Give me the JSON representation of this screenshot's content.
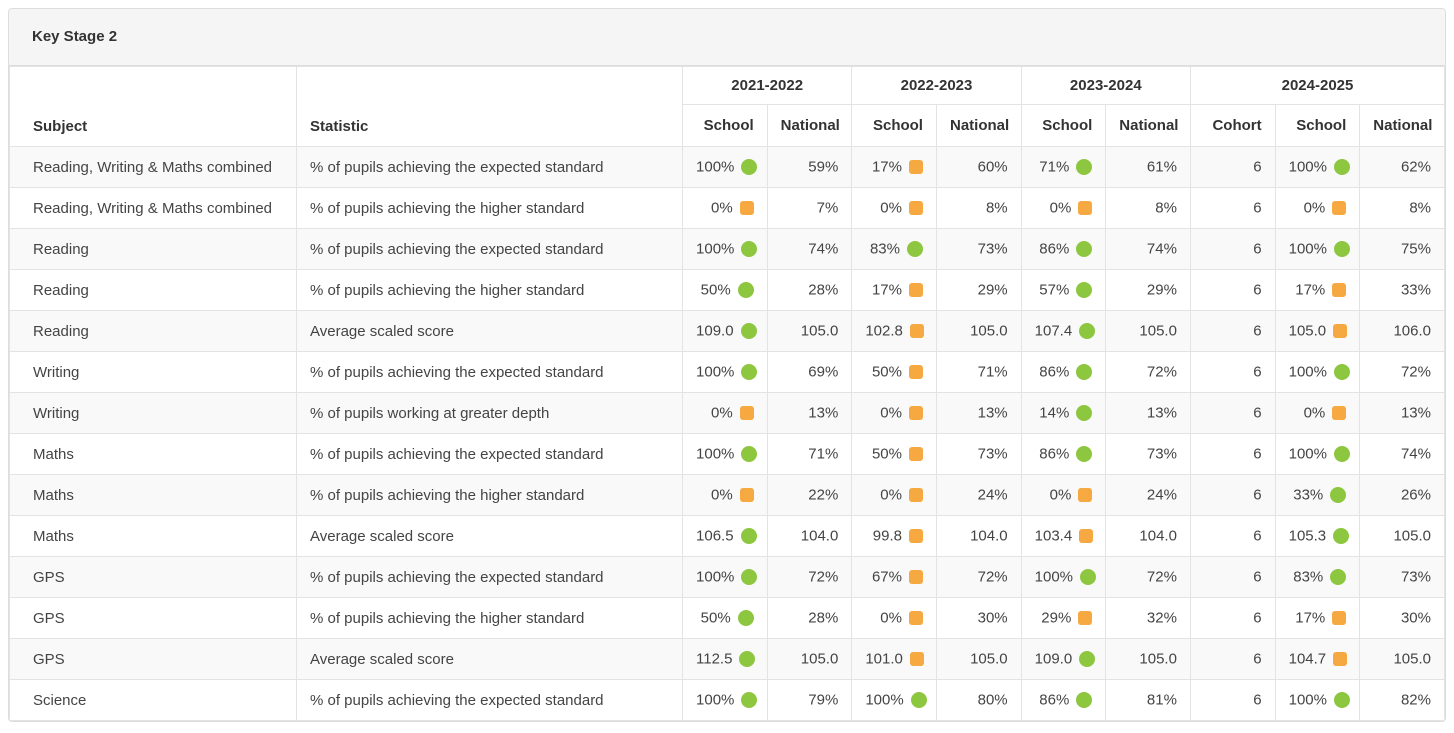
{
  "panel": {
    "title": "Key Stage 2"
  },
  "table": {
    "subject_header": "Subject",
    "statistic_header": "Statistic",
    "year_groups": [
      {
        "label": "2021-2022",
        "columns": [
          "School",
          "National"
        ]
      },
      {
        "label": "2022-2023",
        "columns": [
          "School",
          "National"
        ]
      },
      {
        "label": "2023-2024",
        "columns": [
          "School",
          "National"
        ]
      },
      {
        "label": "2024-2025",
        "columns": [
          "Cohort",
          "School",
          "National"
        ]
      }
    ],
    "indicator_colors": {
      "green": "#8DC63F",
      "orange": "#F7A941"
    },
    "rows": [
      {
        "subject": "Reading, Writing & Maths combined",
        "statistic": "% of pupils achieving the expected standard",
        "cells": [
          {
            "value": "100%",
            "indicator": "green"
          },
          {
            "value": "59%"
          },
          {
            "value": "17%",
            "indicator": "orange"
          },
          {
            "value": "60%"
          },
          {
            "value": "71%",
            "indicator": "green"
          },
          {
            "value": "61%"
          },
          {
            "value": "6"
          },
          {
            "value": "100%",
            "indicator": "green"
          },
          {
            "value": "62%"
          }
        ]
      },
      {
        "subject": "Reading, Writing & Maths combined",
        "statistic": "% of pupils achieving the higher standard",
        "cells": [
          {
            "value": "0%",
            "indicator": "orange"
          },
          {
            "value": "7%"
          },
          {
            "value": "0%",
            "indicator": "orange"
          },
          {
            "value": "8%"
          },
          {
            "value": "0%",
            "indicator": "orange"
          },
          {
            "value": "8%"
          },
          {
            "value": "6"
          },
          {
            "value": "0%",
            "indicator": "orange"
          },
          {
            "value": "8%"
          }
        ]
      },
      {
        "subject": "Reading",
        "statistic": "% of pupils achieving the expected standard",
        "cells": [
          {
            "value": "100%",
            "indicator": "green"
          },
          {
            "value": "74%"
          },
          {
            "value": "83%",
            "indicator": "green"
          },
          {
            "value": "73%"
          },
          {
            "value": "86%",
            "indicator": "green"
          },
          {
            "value": "74%"
          },
          {
            "value": "6"
          },
          {
            "value": "100%",
            "indicator": "green"
          },
          {
            "value": "75%"
          }
        ]
      },
      {
        "subject": "Reading",
        "statistic": "% of pupils achieving the higher standard",
        "cells": [
          {
            "value": "50%",
            "indicator": "green"
          },
          {
            "value": "28%"
          },
          {
            "value": "17%",
            "indicator": "orange"
          },
          {
            "value": "29%"
          },
          {
            "value": "57%",
            "indicator": "green"
          },
          {
            "value": "29%"
          },
          {
            "value": "6"
          },
          {
            "value": "17%",
            "indicator": "orange"
          },
          {
            "value": "33%"
          }
        ]
      },
      {
        "subject": "Reading",
        "statistic": "Average scaled score",
        "cells": [
          {
            "value": "109.0",
            "indicator": "green"
          },
          {
            "value": "105.0"
          },
          {
            "value": "102.8",
            "indicator": "orange"
          },
          {
            "value": "105.0"
          },
          {
            "value": "107.4",
            "indicator": "green"
          },
          {
            "value": "105.0"
          },
          {
            "value": "6"
          },
          {
            "value": "105.0",
            "indicator": "orange"
          },
          {
            "value": "106.0"
          }
        ]
      },
      {
        "subject": "Writing",
        "statistic": "% of pupils achieving the expected standard",
        "cells": [
          {
            "value": "100%",
            "indicator": "green"
          },
          {
            "value": "69%"
          },
          {
            "value": "50%",
            "indicator": "orange"
          },
          {
            "value": "71%"
          },
          {
            "value": "86%",
            "indicator": "green"
          },
          {
            "value": "72%"
          },
          {
            "value": "6"
          },
          {
            "value": "100%",
            "indicator": "green"
          },
          {
            "value": "72%"
          }
        ]
      },
      {
        "subject": "Writing",
        "statistic": "% of pupils working at greater depth",
        "cells": [
          {
            "value": "0%",
            "indicator": "orange"
          },
          {
            "value": "13%"
          },
          {
            "value": "0%",
            "indicator": "orange"
          },
          {
            "value": "13%"
          },
          {
            "value": "14%",
            "indicator": "green"
          },
          {
            "value": "13%"
          },
          {
            "value": "6"
          },
          {
            "value": "0%",
            "indicator": "orange"
          },
          {
            "value": "13%"
          }
        ]
      },
      {
        "subject": "Maths",
        "statistic": "% of pupils achieving the expected standard",
        "cells": [
          {
            "value": "100%",
            "indicator": "green"
          },
          {
            "value": "71%"
          },
          {
            "value": "50%",
            "indicator": "orange"
          },
          {
            "value": "73%"
          },
          {
            "value": "86%",
            "indicator": "green"
          },
          {
            "value": "73%"
          },
          {
            "value": "6"
          },
          {
            "value": "100%",
            "indicator": "green"
          },
          {
            "value": "74%"
          }
        ]
      },
      {
        "subject": "Maths",
        "statistic": "% of pupils achieving the higher standard",
        "cells": [
          {
            "value": "0%",
            "indicator": "orange"
          },
          {
            "value": "22%"
          },
          {
            "value": "0%",
            "indicator": "orange"
          },
          {
            "value": "24%"
          },
          {
            "value": "0%",
            "indicator": "orange"
          },
          {
            "value": "24%"
          },
          {
            "value": "6"
          },
          {
            "value": "33%",
            "indicator": "green"
          },
          {
            "value": "26%"
          }
        ]
      },
      {
        "subject": "Maths",
        "statistic": "Average scaled score",
        "cells": [
          {
            "value": "106.5",
            "indicator": "green"
          },
          {
            "value": "104.0"
          },
          {
            "value": "99.8",
            "indicator": "orange"
          },
          {
            "value": "104.0"
          },
          {
            "value": "103.4",
            "indicator": "orange"
          },
          {
            "value": "104.0"
          },
          {
            "value": "6"
          },
          {
            "value": "105.3",
            "indicator": "green"
          },
          {
            "value": "105.0"
          }
        ]
      },
      {
        "subject": "GPS",
        "statistic": "% of pupils achieving the expected standard",
        "cells": [
          {
            "value": "100%",
            "indicator": "green"
          },
          {
            "value": "72%"
          },
          {
            "value": "67%",
            "indicator": "orange"
          },
          {
            "value": "72%"
          },
          {
            "value": "100%",
            "indicator": "green"
          },
          {
            "value": "72%"
          },
          {
            "value": "6"
          },
          {
            "value": "83%",
            "indicator": "green"
          },
          {
            "value": "73%"
          }
        ]
      },
      {
        "subject": "GPS",
        "statistic": "% of pupils achieving the higher standard",
        "cells": [
          {
            "value": "50%",
            "indicator": "green"
          },
          {
            "value": "28%"
          },
          {
            "value": "0%",
            "indicator": "orange"
          },
          {
            "value": "30%"
          },
          {
            "value": "29%",
            "indicator": "orange"
          },
          {
            "value": "32%"
          },
          {
            "value": "6"
          },
          {
            "value": "17%",
            "indicator": "orange"
          },
          {
            "value": "30%"
          }
        ]
      },
      {
        "subject": "GPS",
        "statistic": "Average scaled score",
        "cells": [
          {
            "value": "112.5",
            "indicator": "green"
          },
          {
            "value": "105.0"
          },
          {
            "value": "101.0",
            "indicator": "orange"
          },
          {
            "value": "105.0"
          },
          {
            "value": "109.0",
            "indicator": "green"
          },
          {
            "value": "105.0"
          },
          {
            "value": "6"
          },
          {
            "value": "104.7",
            "indicator": "orange"
          },
          {
            "value": "105.0"
          }
        ]
      },
      {
        "subject": "Science",
        "statistic": "% of pupils achieving the expected standard",
        "cells": [
          {
            "value": "100%",
            "indicator": "green"
          },
          {
            "value": "79%"
          },
          {
            "value": "100%",
            "indicator": "green"
          },
          {
            "value": "80%"
          },
          {
            "value": "86%",
            "indicator": "green"
          },
          {
            "value": "81%"
          },
          {
            "value": "6"
          },
          {
            "value": "100%",
            "indicator": "green"
          },
          {
            "value": "82%"
          }
        ]
      }
    ]
  }
}
